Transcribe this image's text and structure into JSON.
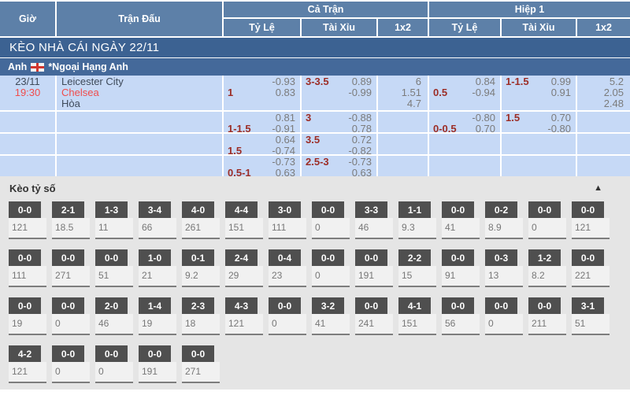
{
  "table": {
    "header": {
      "time": "Giờ",
      "match": "Trận Đấu",
      "full_time": "Cả Trận",
      "first_half": "Hiệp 1",
      "sub": {
        "handicap": "Tỷ Lệ",
        "over_under": "Tài Xỉu",
        "x12": "1x2"
      }
    },
    "section_title": "KÈO NHÀ CÁI NGÀY 22/11",
    "league": {
      "country": "Anh",
      "flag_icon": "england-flag",
      "name": "*Ngoại Hạng Anh"
    },
    "match": {
      "date": "23/11",
      "time": "19:30",
      "home": "Leicester City",
      "away": "Chelsea",
      "draw": "Hòa"
    },
    "odds_rows": [
      {
        "ft_hdp": {
          "label": "1",
          "top": "-0.93",
          "bottom": "0.83"
        },
        "ft_ou": {
          "label": "3-3.5",
          "top": "0.89",
          "bottom": "-0.99"
        },
        "ft_1x2": {
          "v1": "6",
          "v2": "1.51",
          "v3": "4.7"
        },
        "h1_hdp": {
          "label": "0.5",
          "top": "0.84",
          "bottom": "-0.94"
        },
        "h1_ou": {
          "label": "1-1.5",
          "top": "0.99",
          "bottom": "0.91"
        },
        "h1_1x2": {
          "v1": "5.2",
          "v2": "2.05",
          "v3": "2.48"
        }
      },
      {
        "ft_hdp": {
          "label": "1-1.5",
          "top": "0.81",
          "bottom": "-0.91"
        },
        "ft_ou": {
          "label": "3",
          "top": "-0.88",
          "bottom": "0.78"
        },
        "h1_hdp": {
          "label": "0-0.5",
          "top": "-0.80",
          "bottom": "0.70"
        },
        "h1_ou": {
          "label": "1.5",
          "top": "0.70",
          "bottom": "-0.80"
        }
      },
      {
        "ft_hdp": {
          "label": "1.5",
          "top": "0.64",
          "bottom": "-0.74"
        },
        "ft_ou": {
          "label": "3.5",
          "top": "0.72",
          "bottom": "-0.82"
        }
      },
      {
        "ft_hdp": {
          "label": "0.5-1",
          "top": "-0.73",
          "bottom": "0.63"
        },
        "ft_ou": {
          "label": "2.5-3",
          "top": "-0.73",
          "bottom": "0.63"
        }
      }
    ]
  },
  "score_section": {
    "title": "Kèo tỷ số",
    "collapse_icon_glyph": "▲",
    "items": [
      {
        "score": "0-0",
        "odds": "121"
      },
      {
        "score": "2-1",
        "odds": "18.5"
      },
      {
        "score": "1-3",
        "odds": "11"
      },
      {
        "score": "3-4",
        "odds": "66"
      },
      {
        "score": "4-0",
        "odds": "261"
      },
      {
        "score": "4-4",
        "odds": "151"
      },
      {
        "score": "3-0",
        "odds": "111"
      },
      {
        "score": "0-0",
        "odds": "0"
      },
      {
        "score": "3-3",
        "odds": "46"
      },
      {
        "score": "1-1",
        "odds": "9.3"
      },
      {
        "score": "0-0",
        "odds": "41"
      },
      {
        "score": "0-2",
        "odds": "8.9"
      },
      {
        "score": "0-0",
        "odds": "0"
      },
      {
        "score": "0-0",
        "odds": "121"
      },
      {
        "score": "0-0",
        "odds": "111"
      },
      {
        "score": "0-0",
        "odds": "271"
      },
      {
        "score": "0-0",
        "odds": "51"
      },
      {
        "score": "1-0",
        "odds": "21"
      },
      {
        "score": "0-1",
        "odds": "9.2"
      },
      {
        "score": "2-4",
        "odds": "29"
      },
      {
        "score": "0-4",
        "odds": "23"
      },
      {
        "score": "0-0",
        "odds": "0"
      },
      {
        "score": "0-0",
        "odds": "191"
      },
      {
        "score": "2-2",
        "odds": "15"
      },
      {
        "score": "0-0",
        "odds": "91"
      },
      {
        "score": "0-3",
        "odds": "13"
      },
      {
        "score": "1-2",
        "odds": "8.2"
      },
      {
        "score": "0-0",
        "odds": "221"
      },
      {
        "score": "0-0",
        "odds": "19"
      },
      {
        "score": "0-0",
        "odds": "0"
      },
      {
        "score": "2-0",
        "odds": "46"
      },
      {
        "score": "1-4",
        "odds": "19"
      },
      {
        "score": "2-3",
        "odds": "18"
      },
      {
        "score": "4-3",
        "odds": "121"
      },
      {
        "score": "0-0",
        "odds": "0"
      },
      {
        "score": "3-2",
        "odds": "41"
      },
      {
        "score": "0-0",
        "odds": "241"
      },
      {
        "score": "4-1",
        "odds": "151"
      },
      {
        "score": "0-0",
        "odds": "56"
      },
      {
        "score": "0-0",
        "odds": "0"
      },
      {
        "score": "0-0",
        "odds": "211"
      },
      {
        "score": "3-1",
        "odds": "51"
      },
      {
        "score": "4-2",
        "odds": "121"
      },
      {
        "score": "0-0",
        "odds": "0"
      },
      {
        "score": "0-0",
        "odds": "0"
      },
      {
        "score": "0-0",
        "odds": "191"
      },
      {
        "score": "0-0",
        "odds": "271"
      }
    ]
  },
  "colors": {
    "header_blue": "#5d80a8",
    "title_bar_blue": "#3c6292",
    "league_bar_blue": "#44699a",
    "row_blue": "#c6d9f6",
    "accent_red": "#f04c4c",
    "handicap_maroon": "#9c2d26",
    "odds_gray": "#7b7b7b",
    "badge_gray": "#4f4f4f"
  }
}
